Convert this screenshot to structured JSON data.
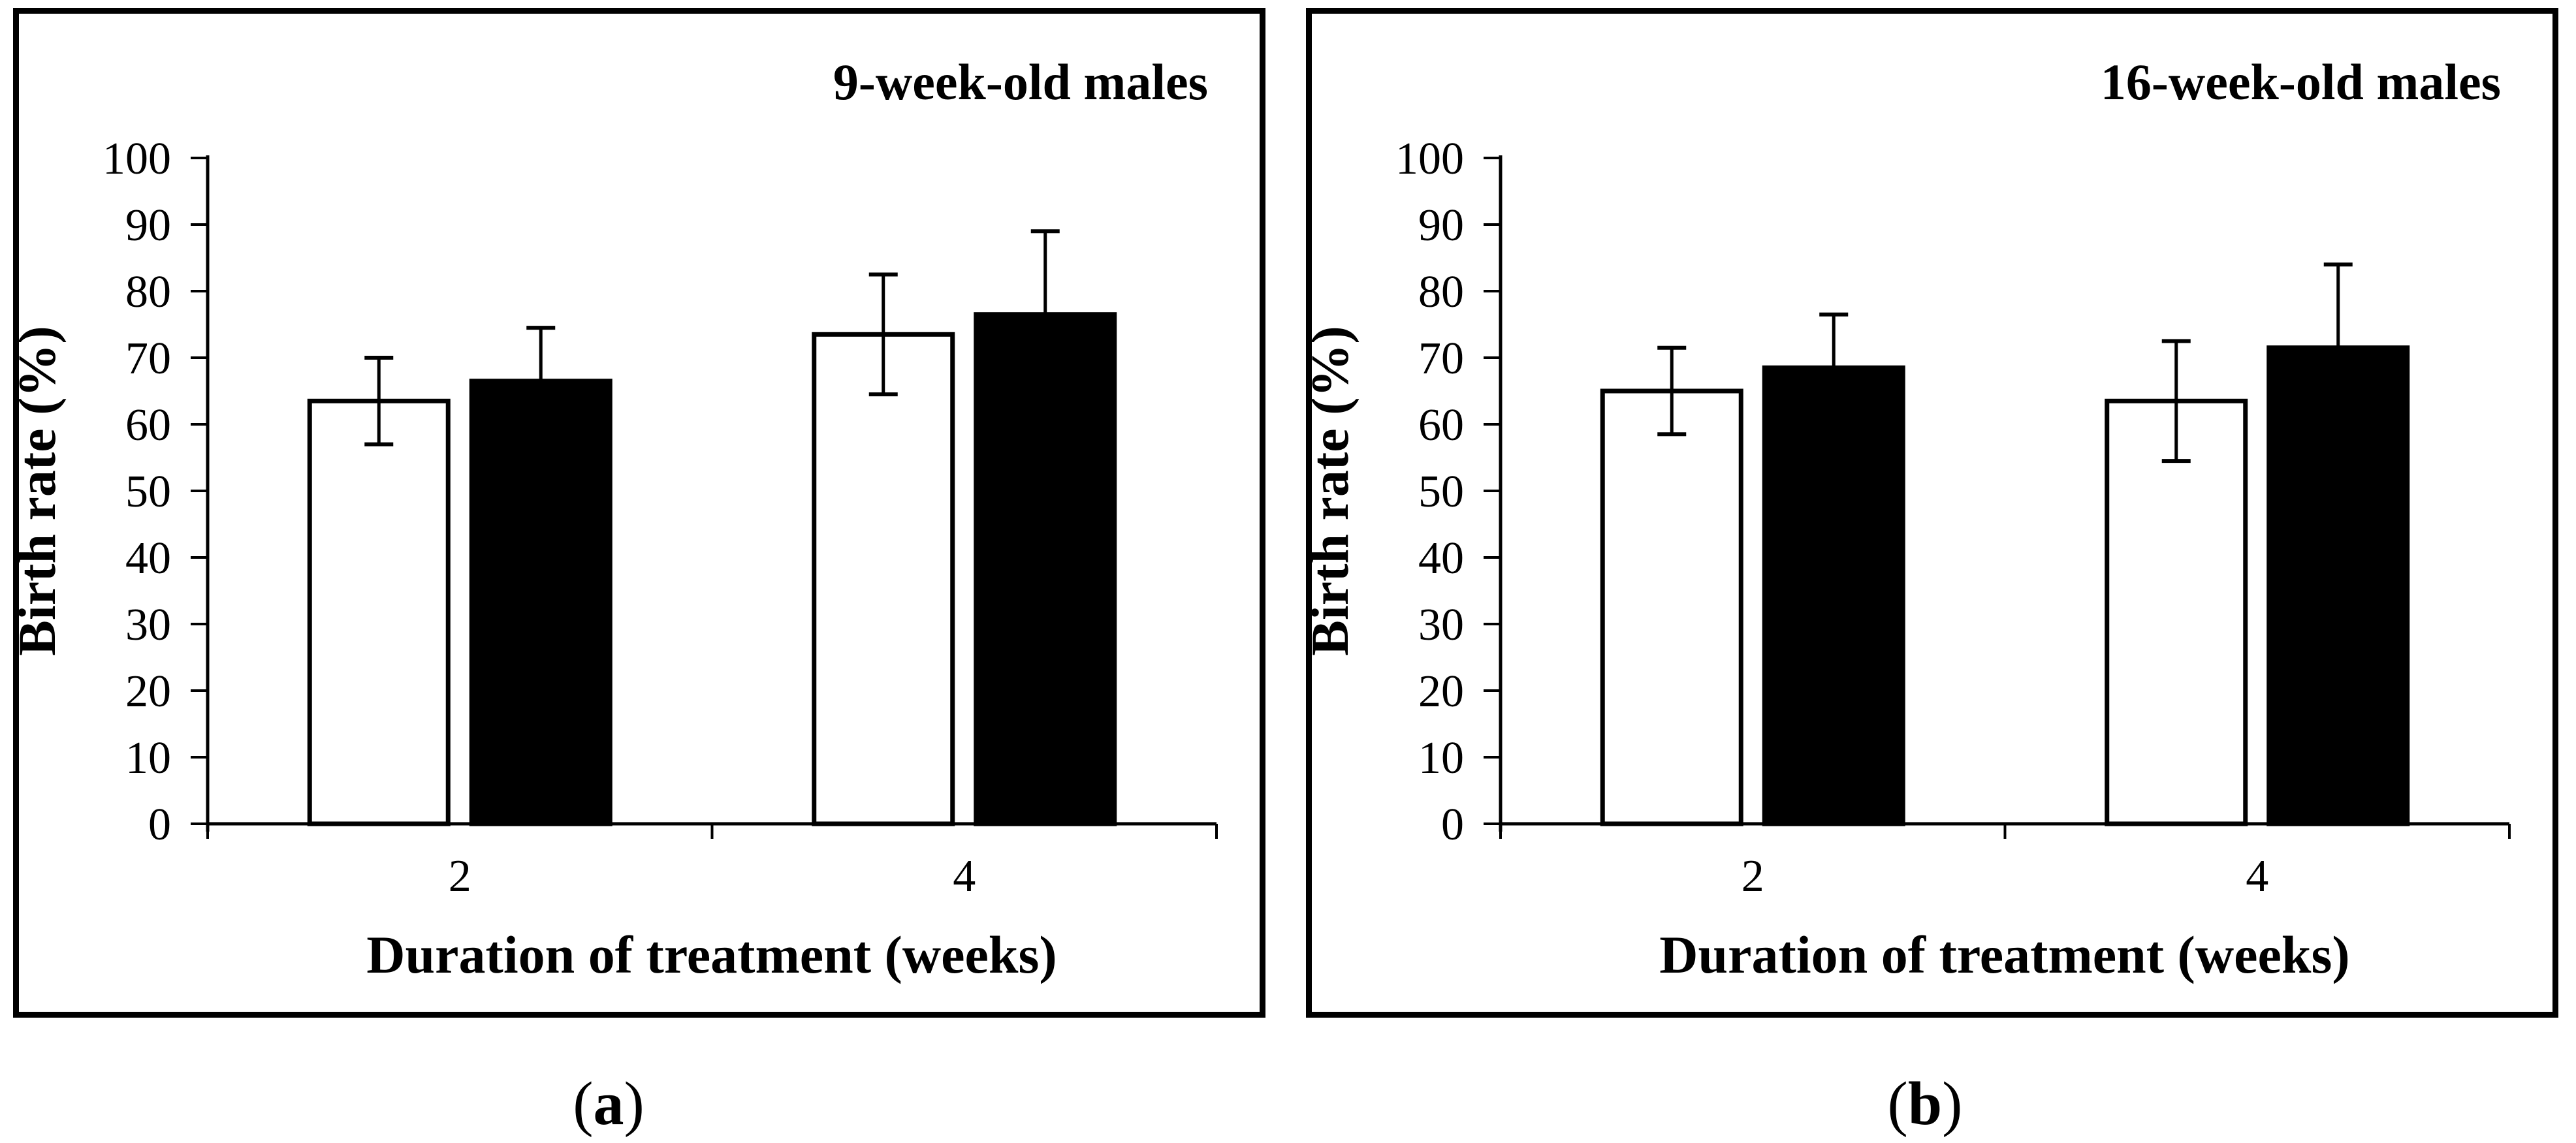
{
  "figure": {
    "background": "#ffffff",
    "ink": "#000000",
    "captions": [
      {
        "open": "(",
        "letter": "a",
        "close": ")"
      },
      {
        "open": "(",
        "letter": "b",
        "close": ")"
      }
    ]
  },
  "chart_data": [
    {
      "type": "bar",
      "title": "9-week-old males",
      "xlabel": "Duration of treatment (weeks)",
      "ylabel": "Birth rate (%)",
      "categories": [
        "2",
        "4"
      ],
      "ylim": [
        0,
        100
      ],
      "yticks": [
        0,
        10,
        20,
        30,
        40,
        50,
        60,
        70,
        80,
        90,
        100
      ],
      "grid": false,
      "legend": "none",
      "error_bars": true,
      "series": [
        {
          "name": "open-bar",
          "fill": "#ffffff",
          "values": [
            63.5,
            73.5
          ],
          "errors": [
            6.5,
            9.0
          ]
        },
        {
          "name": "filled-bar",
          "fill": "#000000",
          "values": [
            66.5,
            76.5
          ],
          "errors": [
            8.0,
            12.5
          ]
        }
      ]
    },
    {
      "type": "bar",
      "title": "16-week-old males",
      "xlabel": "Duration of treatment (weeks)",
      "ylabel": "Birth rate (%)",
      "categories": [
        "2",
        "4"
      ],
      "ylim": [
        0,
        100
      ],
      "yticks": [
        0,
        10,
        20,
        30,
        40,
        50,
        60,
        70,
        80,
        90,
        100
      ],
      "grid": false,
      "legend": "none",
      "error_bars": true,
      "series": [
        {
          "name": "open-bar",
          "fill": "#ffffff",
          "values": [
            65.0,
            63.5
          ],
          "errors": [
            6.5,
            9.0
          ]
        },
        {
          "name": "filled-bar",
          "fill": "#000000",
          "values": [
            68.5,
            71.5
          ],
          "errors": [
            8.0,
            12.5
          ]
        }
      ]
    }
  ]
}
